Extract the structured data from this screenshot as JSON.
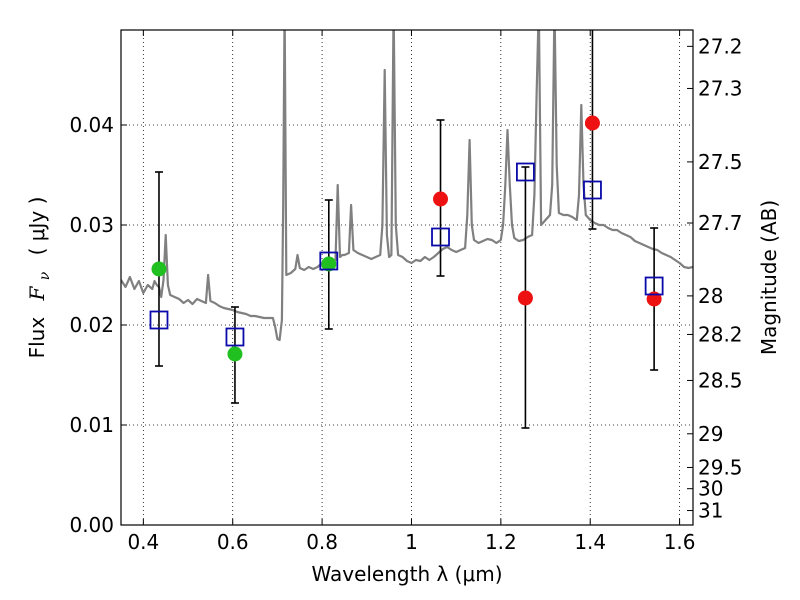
{
  "chart_data": {
    "type": "scatter",
    "title": "",
    "xlabel": "Wavelength  λ (μm)",
    "ylabel": "Flux  F_ν  ( μJy )",
    "ylabel_parts": {
      "prefix": "Flux",
      "symbol": "F",
      "subscript": "ν",
      "unit": "( μJy )"
    },
    "y2label": "Magnitude (AB)",
    "xlim": [
      0.35,
      1.63
    ],
    "ylim": [
      0.0,
      0.0495
    ],
    "grid": true,
    "x_ticks": [
      {
        "value": 0.4,
        "label": "0.4"
      },
      {
        "value": 0.6,
        "label": "0.6"
      },
      {
        "value": 0.8,
        "label": "0.8"
      },
      {
        "value": 1.0,
        "label": "1"
      },
      {
        "value": 1.2,
        "label": "1.2"
      },
      {
        "value": 1.4,
        "label": "1.4"
      },
      {
        "value": 1.6,
        "label": "1.6"
      }
    ],
    "y_ticks": [
      {
        "value": 0.0,
        "label": "0.00"
      },
      {
        "value": 0.01,
        "label": "0.01"
      },
      {
        "value": 0.02,
        "label": "0.02"
      },
      {
        "value": 0.03,
        "label": "0.03"
      },
      {
        "value": 0.04,
        "label": "0.04"
      }
    ],
    "y2_ticks": [
      {
        "mag": 27.2,
        "label": "27.2"
      },
      {
        "mag": 27.3,
        "label": "27.3"
      },
      {
        "mag": 27.5,
        "label": "27.5"
      },
      {
        "mag": 27.7,
        "label": "27.7"
      },
      {
        "mag": 28.0,
        "label": "28"
      },
      {
        "mag": 28.2,
        "label": "28.2"
      },
      {
        "mag": 28.5,
        "label": "28.5"
      },
      {
        "mag": 29.0,
        "label": "29"
      },
      {
        "mag": 29.5,
        "label": "29.5"
      },
      {
        "mag": 30.0,
        "label": "30"
      },
      {
        "mag": 31.0,
        "label": "31"
      }
    ],
    "model_spectrum": {
      "color": "#808080",
      "points": [
        [
          0.35,
          0.0245
        ],
        [
          0.36,
          0.0238
        ],
        [
          0.37,
          0.0248
        ],
        [
          0.38,
          0.0236
        ],
        [
          0.39,
          0.0244
        ],
        [
          0.4,
          0.0232
        ],
        [
          0.41,
          0.024
        ],
        [
          0.42,
          0.0236
        ],
        [
          0.425,
          0.0244
        ],
        [
          0.43,
          0.024
        ],
        [
          0.435,
          0.0238
        ],
        [
          0.44,
          0.0228
        ],
        [
          0.445,
          0.0245
        ],
        [
          0.45,
          0.029
        ],
        [
          0.455,
          0.024
        ],
        [
          0.46,
          0.023
        ],
        [
          0.47,
          0.0228
        ],
        [
          0.48,
          0.0226
        ],
        [
          0.49,
          0.0222
        ],
        [
          0.5,
          0.0225
        ],
        [
          0.51,
          0.0221
        ],
        [
          0.52,
          0.0226
        ],
        [
          0.53,
          0.0224
        ],
        [
          0.54,
          0.0222
        ],
        [
          0.545,
          0.025
        ],
        [
          0.55,
          0.0224
        ],
        [
          0.56,
          0.0222
        ],
        [
          0.57,
          0.0219
        ],
        [
          0.58,
          0.0217
        ],
        [
          0.59,
          0.0216
        ],
        [
          0.6,
          0.0215
        ],
        [
          0.61,
          0.0213
        ],
        [
          0.62,
          0.0212
        ],
        [
          0.63,
          0.0211
        ],
        [
          0.64,
          0.0209
        ],
        [
          0.65,
          0.0209
        ],
        [
          0.66,
          0.0208
        ],
        [
          0.67,
          0.0207
        ],
        [
          0.68,
          0.0207
        ],
        [
          0.69,
          0.0207
        ],
        [
          0.695,
          0.0198
        ],
        [
          0.7,
          0.0186
        ],
        [
          0.705,
          0.0185
        ],
        [
          0.71,
          0.0205
        ],
        [
          0.713,
          0.032
        ],
        [
          0.716,
          0.052
        ],
        [
          0.72,
          0.025
        ],
        [
          0.73,
          0.0252
        ],
        [
          0.74,
          0.0256
        ],
        [
          0.745,
          0.027
        ],
        [
          0.75,
          0.0257
        ],
        [
          0.76,
          0.0255
        ],
        [
          0.77,
          0.0258
        ],
        [
          0.78,
          0.0256
        ],
        [
          0.79,
          0.0258
        ],
        [
          0.8,
          0.0262
        ],
        [
          0.81,
          0.0264
        ],
        [
          0.82,
          0.0262
        ],
        [
          0.83,
          0.0265
        ],
        [
          0.835,
          0.034
        ],
        [
          0.84,
          0.0268
        ],
        [
          0.845,
          0.027
        ],
        [
          0.85,
          0.027
        ],
        [
          0.86,
          0.0272
        ],
        [
          0.865,
          0.032
        ],
        [
          0.87,
          0.0275
        ],
        [
          0.88,
          0.0272
        ],
        [
          0.89,
          0.027
        ],
        [
          0.9,
          0.0268
        ],
        [
          0.91,
          0.0266
        ],
        [
          0.92,
          0.0268
        ],
        [
          0.93,
          0.027
        ],
        [
          0.935,
          0.03
        ],
        [
          0.94,
          0.0455
        ],
        [
          0.945,
          0.029
        ],
        [
          0.95,
          0.0268
        ],
        [
          0.955,
          0.027
        ],
        [
          0.96,
          0.052
        ],
        [
          0.965,
          0.03
        ],
        [
          0.97,
          0.027
        ],
        [
          0.98,
          0.0268
        ],
        [
          0.99,
          0.0264
        ],
        [
          1.0,
          0.0262
        ],
        [
          1.01,
          0.0265
        ],
        [
          1.02,
          0.0264
        ],
        [
          1.03,
          0.0268
        ],
        [
          1.04,
          0.0265
        ],
        [
          1.05,
          0.0268
        ],
        [
          1.06,
          0.0272
        ],
        [
          1.07,
          0.0276
        ],
        [
          1.08,
          0.0278
        ],
        [
          1.09,
          0.0275
        ],
        [
          1.1,
          0.0273
        ],
        [
          1.11,
          0.0275
        ],
        [
          1.12,
          0.0277
        ],
        [
          1.125,
          0.031
        ],
        [
          1.13,
          0.0385
        ],
        [
          1.135,
          0.03
        ],
        [
          1.14,
          0.0285
        ],
        [
          1.15,
          0.0282
        ],
        [
          1.16,
          0.0284
        ],
        [
          1.17,
          0.0286
        ],
        [
          1.18,
          0.0285
        ],
        [
          1.19,
          0.0282
        ],
        [
          1.2,
          0.0285
        ],
        [
          1.205,
          0.03
        ],
        [
          1.21,
          0.034
        ],
        [
          1.215,
          0.0395
        ],
        [
          1.22,
          0.034
        ],
        [
          1.225,
          0.03
        ],
        [
          1.23,
          0.0287
        ],
        [
          1.24,
          0.0284
        ],
        [
          1.25,
          0.0285
        ],
        [
          1.26,
          0.0288
        ],
        [
          1.27,
          0.029
        ],
        [
          1.275,
          0.033
        ],
        [
          1.28,
          0.043
        ],
        [
          1.285,
          0.052
        ],
        [
          1.29,
          0.03
        ],
        [
          1.3,
          0.0305
        ],
        [
          1.31,
          0.031
        ],
        [
          1.315,
          0.034
        ],
        [
          1.32,
          0.052
        ],
        [
          1.325,
          0.036
        ],
        [
          1.33,
          0.0312
        ],
        [
          1.34,
          0.031
        ],
        [
          1.35,
          0.031
        ],
        [
          1.36,
          0.0308
        ],
        [
          1.37,
          0.0305
        ],
        [
          1.375,
          0.033
        ],
        [
          1.38,
          0.042
        ],
        [
          1.385,
          0.034
        ],
        [
          1.39,
          0.031
        ],
        [
          1.4,
          0.0305
        ],
        [
          1.41,
          0.0302
        ],
        [
          1.42,
          0.03
        ],
        [
          1.43,
          0.03
        ],
        [
          1.44,
          0.0297
        ],
        [
          1.45,
          0.0295
        ],
        [
          1.46,
          0.0295
        ],
        [
          1.47,
          0.0292
        ],
        [
          1.48,
          0.029
        ],
        [
          1.49,
          0.0288
        ],
        [
          1.5,
          0.0284
        ],
        [
          1.51,
          0.0282
        ],
        [
          1.52,
          0.028
        ],
        [
          1.53,
          0.0278
        ],
        [
          1.54,
          0.0276
        ],
        [
          1.55,
          0.0275
        ],
        [
          1.56,
          0.0272
        ],
        [
          1.57,
          0.027
        ],
        [
          1.58,
          0.0268
        ],
        [
          1.59,
          0.0265
        ],
        [
          1.6,
          0.0262
        ],
        [
          1.61,
          0.0258
        ],
        [
          1.62,
          0.0257
        ],
        [
          1.63,
          0.0258
        ]
      ]
    },
    "series": [
      {
        "marker": "circle",
        "color": "#20c020",
        "points": [
          {
            "x": 0.435,
            "y": 0.0256
          },
          {
            "x": 0.605,
            "y": 0.0171
          },
          {
            "x": 0.815,
            "y": 0.0261
          }
        ]
      },
      {
        "marker": "circle",
        "color": "#ee1111",
        "points": [
          {
            "x": 1.065,
            "y": 0.0326
          },
          {
            "x": 1.255,
            "y": 0.0227
          },
          {
            "x": 1.405,
            "y": 0.0402
          },
          {
            "x": 1.543,
            "y": 0.0226
          }
        ]
      },
      {
        "marker": "open-square",
        "color": "#0a0aaa",
        "points": [
          {
            "x": 0.435,
            "y": 0.0205,
            "yerr_low": 0.0159,
            "yerr_high": 0.0353
          },
          {
            "x": 0.605,
            "y": 0.0188,
            "yerr_low": 0.0122,
            "yerr_high": 0.0218
          },
          {
            "x": 0.815,
            "y": 0.0264,
            "yerr_low": 0.0196,
            "yerr_high": 0.0325
          },
          {
            "x": 1.065,
            "y": 0.0288,
            "yerr_low": 0.0249,
            "yerr_high": 0.0405
          },
          {
            "x": 1.255,
            "y": 0.0353,
            "yerr_low": 0.0097,
            "yerr_high": 0.0358
          },
          {
            "x": 1.405,
            "y": 0.0335,
            "yerr_low": 0.0296,
            "yerr_high": 0.052
          },
          {
            "x": 1.543,
            "y": 0.0239,
            "yerr_low": 0.0155,
            "yerr_high": 0.0297
          }
        ]
      }
    ]
  }
}
